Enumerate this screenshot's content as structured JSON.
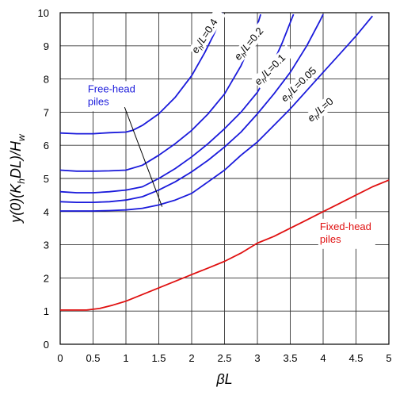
{
  "chart_data": {
    "type": "line",
    "xlabel_parts": [
      "β",
      "L"
    ],
    "ylabel_parts": [
      "y(0)(K",
      "h",
      "DL)/H",
      "w"
    ],
    "xlim": [
      0,
      5
    ],
    "ylim": [
      0,
      10
    ],
    "x_ticks": [
      0,
      0.5,
      1,
      1.5,
      2,
      2.5,
      3,
      3.5,
      4,
      4.5,
      5
    ],
    "x_tick_labels": [
      "0",
      "0.5",
      "1",
      "1.5",
      "2",
      "2.5",
      "3",
      "3.5",
      "4",
      "4.5",
      "5"
    ],
    "y_ticks": [
      0,
      1,
      2,
      3,
      4,
      5,
      6,
      7,
      8,
      9,
      10
    ],
    "y_tick_labels": [
      "0",
      "1",
      "2",
      "3",
      "4",
      "5",
      "6",
      "7",
      "8",
      "9",
      "10"
    ],
    "grid": true,
    "colors": {
      "free_head": "#1a1adb",
      "fixed_head": "#e01010",
      "grid": "#333333"
    },
    "series": [
      {
        "label_parts": [
          "e",
          "h",
          "/L=0.4"
        ],
        "group": "free-head",
        "points": [
          [
            0,
            6.37
          ],
          [
            0.25,
            6.35
          ],
          [
            0.5,
            6.35
          ],
          [
            0.75,
            6.38
          ],
          [
            1,
            6.4
          ],
          [
            1.1,
            6.45
          ],
          [
            1.25,
            6.6
          ],
          [
            1.5,
            6.95
          ],
          [
            1.75,
            7.45
          ],
          [
            2,
            8.1
          ],
          [
            2.2,
            8.8
          ],
          [
            2.35,
            9.4
          ],
          [
            2.47,
            10
          ]
        ]
      },
      {
        "label_parts": [
          "e",
          "h",
          "/L=0.2"
        ],
        "group": "free-head",
        "points": [
          [
            0,
            5.25
          ],
          [
            0.25,
            5.22
          ],
          [
            0.5,
            5.22
          ],
          [
            0.75,
            5.23
          ],
          [
            1,
            5.25
          ],
          [
            1.25,
            5.4
          ],
          [
            1.5,
            5.7
          ],
          [
            1.75,
            6.05
          ],
          [
            2,
            6.45
          ],
          [
            2.25,
            6.95
          ],
          [
            2.5,
            7.55
          ],
          [
            2.75,
            8.4
          ],
          [
            2.95,
            9.3
          ],
          [
            3.05,
            9.95
          ]
        ]
      },
      {
        "label_parts": [
          "e",
          "h",
          "/L=0.1"
        ],
        "group": "free-head",
        "points": [
          [
            0,
            4.6
          ],
          [
            0.25,
            4.57
          ],
          [
            0.5,
            4.57
          ],
          [
            0.75,
            4.6
          ],
          [
            1,
            4.65
          ],
          [
            1.25,
            4.75
          ],
          [
            1.5,
            5
          ],
          [
            1.75,
            5.3
          ],
          [
            2,
            5.65
          ],
          [
            2.25,
            6.05
          ],
          [
            2.5,
            6.5
          ],
          [
            2.75,
            7
          ],
          [
            3,
            7.6
          ],
          [
            3.2,
            8.3
          ],
          [
            3.38,
            9.1
          ],
          [
            3.55,
            9.95
          ]
        ]
      },
      {
        "label_parts": [
          "e",
          "h",
          "/L=0.05"
        ],
        "group": "free-head",
        "points": [
          [
            0,
            4.3
          ],
          [
            0.25,
            4.28
          ],
          [
            0.5,
            4.28
          ],
          [
            0.75,
            4.3
          ],
          [
            1,
            4.35
          ],
          [
            1.25,
            4.45
          ],
          [
            1.5,
            4.65
          ],
          [
            1.75,
            4.9
          ],
          [
            2,
            5.2
          ],
          [
            2.25,
            5.55
          ],
          [
            2.5,
            5.95
          ],
          [
            2.75,
            6.4
          ],
          [
            3,
            6.95
          ],
          [
            3.25,
            7.55
          ],
          [
            3.5,
            8.2
          ],
          [
            3.75,
            9
          ],
          [
            3.95,
            9.75
          ],
          [
            4,
            9.95
          ]
        ]
      },
      {
        "label_parts": [
          "e",
          "h",
          "/L=0"
        ],
        "group": "free-head",
        "points": [
          [
            0,
            4.02
          ],
          [
            0.25,
            4.02
          ],
          [
            0.5,
            4.02
          ],
          [
            0.75,
            4.03
          ],
          [
            1,
            4.05
          ],
          [
            1.25,
            4.1
          ],
          [
            1.5,
            4.2
          ],
          [
            1.75,
            4.35
          ],
          [
            2,
            4.55
          ],
          [
            2.25,
            4.9
          ],
          [
            2.5,
            5.25
          ],
          [
            2.75,
            5.7
          ],
          [
            3,
            6.1
          ],
          [
            3.25,
            6.6
          ],
          [
            3.5,
            7.1
          ],
          [
            3.75,
            7.65
          ],
          [
            4,
            8.2
          ],
          [
            4.25,
            8.75
          ],
          [
            4.5,
            9.3
          ],
          [
            4.75,
            9.9
          ]
        ]
      },
      {
        "label_parts": [],
        "group": "fixed-head",
        "points": [
          [
            0,
            1.03
          ],
          [
            0.25,
            1.03
          ],
          [
            0.4,
            1.03
          ],
          [
            0.6,
            1.08
          ],
          [
            0.8,
            1.18
          ],
          [
            1,
            1.3
          ],
          [
            1.25,
            1.5
          ],
          [
            1.5,
            1.7
          ],
          [
            1.75,
            1.9
          ],
          [
            2,
            2.1
          ],
          [
            2.25,
            2.3
          ],
          [
            2.5,
            2.5
          ],
          [
            2.75,
            2.75
          ],
          [
            3,
            3.05
          ],
          [
            3.25,
            3.25
          ],
          [
            3.5,
            3.5
          ],
          [
            3.75,
            3.75
          ],
          [
            4,
            4
          ],
          [
            4.25,
            4.25
          ],
          [
            4.5,
            4.5
          ],
          [
            4.75,
            4.75
          ],
          [
            5,
            4.95
          ]
        ]
      }
    ],
    "annotations": {
      "free_head": [
        "Free-head",
        "piles"
      ],
      "fixed_head": [
        "Fixed-head",
        "piles"
      ]
    }
  }
}
